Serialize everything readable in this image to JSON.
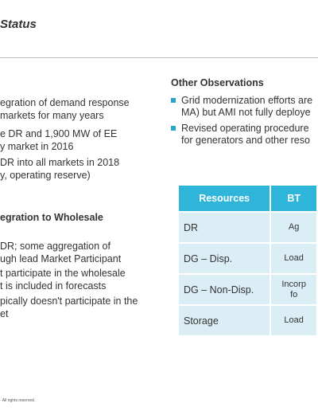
{
  "title": "Status",
  "left": {
    "items": [
      "egration of demand response",
      "markets for many years",
      "e DR and 1,900 MW of EE",
      "y market in 2016",
      "DR into all markets in 2018",
      "y, operating reserve)"
    ],
    "heading": "egration to Wholesale",
    "items2": [
      "DR; some aggregation of",
      "ugh lead Market Participant",
      "t participate in the wholesale",
      "t is included in forecasts",
      "pically doesn't participate in the",
      "et"
    ]
  },
  "observations": {
    "heading": "Other Observations",
    "items": [
      {
        "line1": "Grid modernization efforts are",
        "line2": "MA) but AMI not fully deploye"
      },
      {
        "line1": "Revised operating procedure",
        "line2": "for generators and other reso"
      }
    ]
  },
  "table": {
    "headers": [
      "Resources",
      "BT"
    ],
    "rows": [
      {
        "resource": "DR",
        "value": "Ag"
      },
      {
        "resource": "DG – Disp.",
        "value": "Load"
      },
      {
        "resource": "DG – Non-Disp.",
        "value": "Incorp",
        "value2": "fo"
      },
      {
        "resource": "Storage",
        "value": "Load"
      }
    ]
  },
  "footer": "· All rights reserved.",
  "colors": {
    "accent": "#2fb5da",
    "row_bg": "#dbeef5",
    "bullet": "#2aa6c8"
  }
}
